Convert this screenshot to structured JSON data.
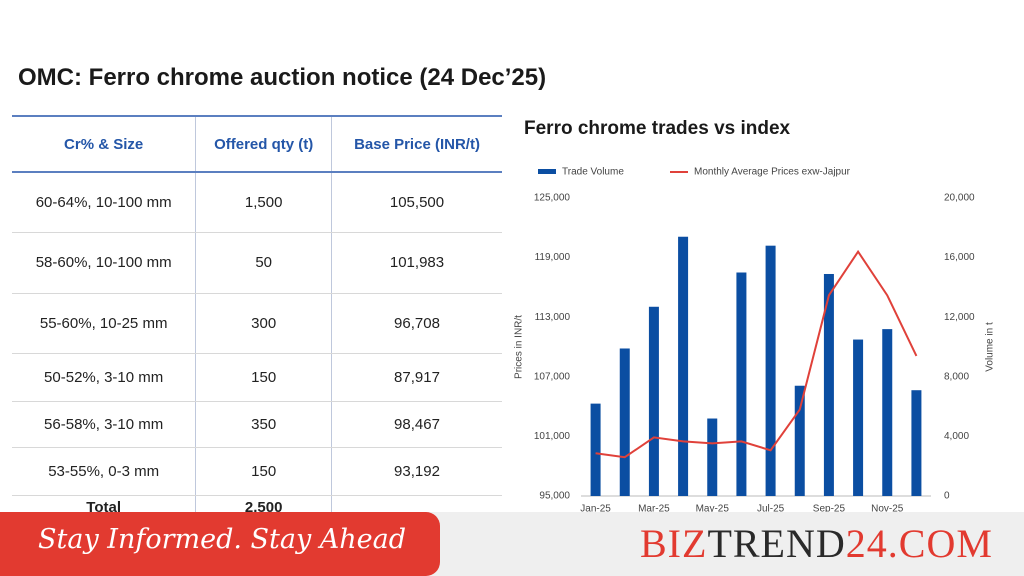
{
  "header": {
    "title": "OMC: Ferro chrome auction notice (24 Dec’25)"
  },
  "table": {
    "columns": [
      "Cr% & Size",
      "Offered qty (t)",
      "Base Price (INR/t)"
    ],
    "rows": [
      [
        "60-64%,  10-100 mm",
        "1,500",
        "105,500"
      ],
      [
        "58-60%,  10-100 mm",
        "50",
        "101,983"
      ],
      [
        "55-60%,  10-25 mm",
        "300",
        "96,708"
      ],
      [
        "50-52%,  3-10 mm",
        "150",
        "87,917"
      ],
      [
        "56-58%,  3-10 mm",
        "350",
        "98,467"
      ],
      [
        "53-55%,  0-3 mm",
        "150",
        "93,192"
      ]
    ],
    "total": [
      "Total",
      "2,500"
    ]
  },
  "chart_data": {
    "type": "combo",
    "title": "Ferro chrome trades vs index",
    "categories": [
      "Jan-25",
      null,
      "Mar-25",
      null,
      "May-25",
      null,
      "Jul-25",
      null,
      "Sep-25",
      null,
      "Nov-25",
      null
    ],
    "series": [
      {
        "name": "Trade Volume",
        "type": "bar",
        "axis": "y2",
        "color": "#0b4ea2",
        "values": [
          6200,
          9900,
          12700,
          17400,
          5200,
          15000,
          16800,
          7400,
          14900,
          10500,
          11200,
          7100
        ]
      },
      {
        "name": "Monthly Average Prices exw-Jajpur",
        "type": "line",
        "axis": "y",
        "color": "#e0413a",
        "values": [
          99300,
          98900,
          100900,
          100500,
          100300,
          100500,
          99600,
          103700,
          115200,
          119600,
          115200,
          109100
        ]
      }
    ],
    "ylabel": "Prices in INR/t",
    "y2label": "Volume in t",
    "ylim": [
      95000,
      125000
    ],
    "yticks": [
      {
        "value": 95000,
        "label": "95,000"
      },
      {
        "value": 101000,
        "label": "101,000"
      },
      {
        "value": 107000,
        "label": "107,000"
      },
      {
        "value": 113000,
        "label": "113,000"
      },
      {
        "value": 119000,
        "label": "119,000"
      },
      {
        "value": 125000,
        "label": "125,000"
      }
    ],
    "y2lim": [
      0,
      20000
    ],
    "y2ticks": [
      0,
      {
        "value": 4000,
        "label": "4,000"
      },
      {
        "value": 8000,
        "label": "8,000"
      },
      {
        "value": 12000,
        "label": "12,000"
      },
      {
        "value": 16000,
        "label": "16,000"
      },
      {
        "value": 20000,
        "label": "20,000"
      }
    ],
    "grid": false,
    "legend": "top"
  },
  "footer": {
    "slogan": "Stay Informed. Stay Ahead",
    "brand": [
      "BIZ",
      "TREND",
      "24.COM"
    ]
  }
}
